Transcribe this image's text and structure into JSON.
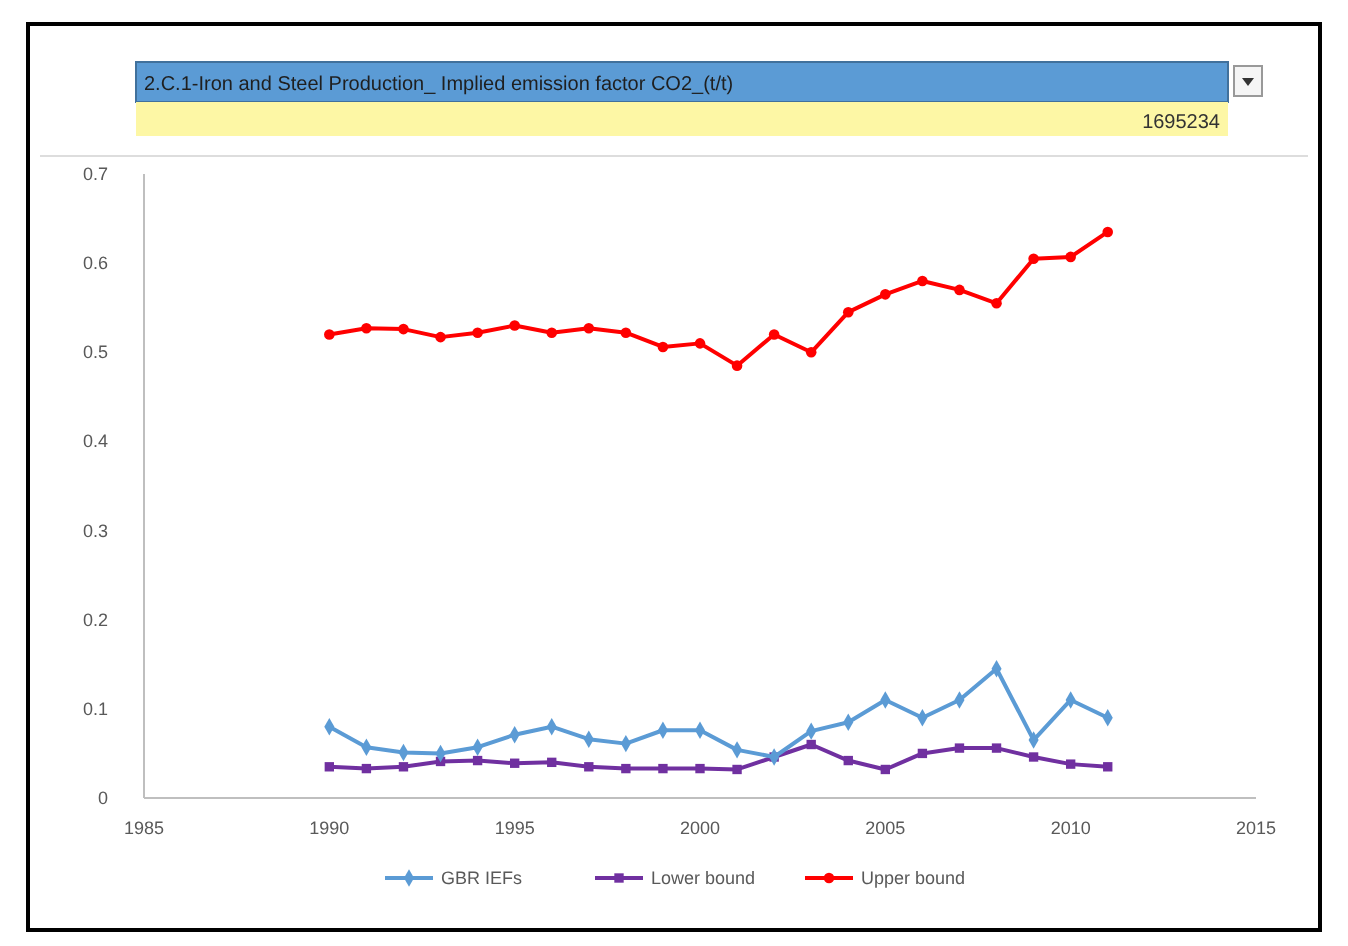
{
  "chart_data": {
    "type": "line",
    "title": "2.C.1-Iron and Steel Production_ Implied emission factor CO2_(t/t)",
    "subtitle": "1695234",
    "x": [
      1990,
      1991,
      1992,
      1993,
      1994,
      1995,
      1996,
      1997,
      1998,
      1999,
      2000,
      2001,
      2002,
      2003,
      2004,
      2005,
      2006,
      2007,
      2008,
      2009,
      2010,
      2011
    ],
    "series": [
      {
        "name": "GBR IEFs",
        "color": "#5b9bd5",
        "marker": "diamond",
        "values": [
          0.08,
          0.057,
          0.051,
          0.05,
          0.057,
          0.071,
          0.08,
          0.066,
          0.061,
          0.076,
          0.076,
          0.054,
          0.046,
          0.075,
          0.085,
          0.11,
          0.09,
          0.11,
          0.145,
          0.065,
          0.11,
          0.09
        ]
      },
      {
        "name": "Lower bound",
        "color": "#7030a0",
        "marker": "square",
        "values": [
          0.035,
          0.033,
          0.035,
          0.041,
          0.042,
          0.039,
          0.04,
          0.035,
          0.033,
          0.033,
          0.033,
          0.032,
          0.046,
          0.06,
          0.042,
          0.032,
          0.05,
          0.056,
          0.056,
          0.046,
          0.038,
          0.035
        ]
      },
      {
        "name": "Upper bound",
        "color": "#ff0000",
        "marker": "circle",
        "values": [
          0.52,
          0.527,
          0.526,
          0.517,
          0.522,
          0.53,
          0.522,
          0.527,
          0.522,
          0.506,
          0.51,
          0.485,
          0.52,
          0.5,
          0.545,
          0.565,
          0.58,
          0.57,
          0.555,
          0.605,
          0.607,
          0.635
        ]
      }
    ],
    "xlim": [
      1985,
      2015
    ],
    "xticks": [
      1985,
      1990,
      1995,
      2000,
      2005,
      2010,
      2015
    ],
    "ylim": [
      0,
      0.7
    ],
    "yticks": [
      0,
      0.1,
      0.2,
      0.3,
      0.4,
      0.5,
      0.6,
      0.7
    ],
    "legend": "bottom",
    "line_style": "solid"
  }
}
